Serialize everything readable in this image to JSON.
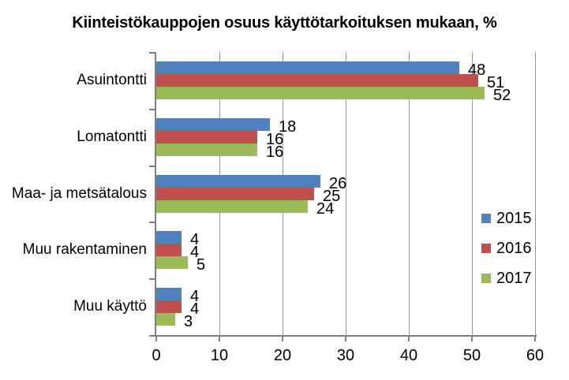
{
  "title": "Kiinteistökauppojen osuus käyttötarkoituksen mukaan, %",
  "chart_data": {
    "type": "bar",
    "orientation": "horizontal",
    "title": "Kiinteistökauppojen osuus käyttötarkoituksen mukaan, %",
    "categories": [
      "Asuintontti",
      "Lomatontti",
      "Maa- ja metsätalous",
      "Muu rakentaminen",
      "Muu käyttö"
    ],
    "series": [
      {
        "name": "2015",
        "color": "#4F81BD",
        "values": [
          48,
          18,
          26,
          4,
          4
        ]
      },
      {
        "name": "2016",
        "color": "#C0504D",
        "values": [
          51,
          16,
          25,
          4,
          4
        ]
      },
      {
        "name": "2017",
        "color": "#9BBB59",
        "values": [
          52,
          16,
          24,
          5,
          3
        ]
      }
    ],
    "xlabel": "",
    "ylabel": "",
    "xlim": [
      0,
      60
    ],
    "x_ticks": [
      0,
      10,
      20,
      30,
      40,
      50,
      60
    ],
    "grid": "vertical-only",
    "data_labels": true,
    "legend_position": "right-inside",
    "bar_order_top_to_bottom": [
      "2015",
      "2016",
      "2017"
    ]
  },
  "colors": {
    "axis": "#7F7F7F",
    "gridline": "#969696",
    "text": "#000000"
  }
}
